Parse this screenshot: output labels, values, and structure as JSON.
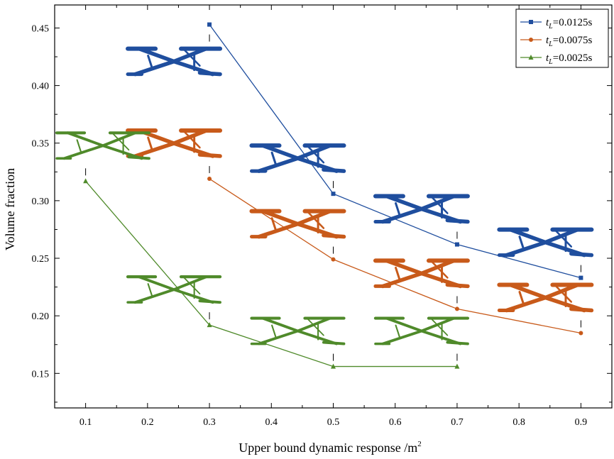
{
  "chart_data": {
    "type": "line",
    "xlabel": "Upper bound dynamic response /m",
    "xlabel_sup": "2",
    "ylabel": "Volume fraction",
    "xlim": [
      0.05,
      0.95
    ],
    "ylim": [
      0.12,
      0.47
    ],
    "xticks": [
      "0.1",
      "0.2",
      "0.3",
      "0.4",
      "0.5",
      "0.6",
      "0.7",
      "0.8",
      "0.9"
    ],
    "yticks": [
      "0.15",
      "0.20",
      "0.25",
      "0.30",
      "0.35",
      "0.40",
      "0.45"
    ],
    "grid": false,
    "legend_position": "top-right",
    "series": [
      {
        "name_prefix": "t",
        "name_sub": "L",
        "name_suffix": "=0.0125s",
        "color": "#1f4e9e",
        "marker": "square",
        "x": [
          0.3,
          0.5,
          0.7,
          0.9
        ],
        "y": [
          0.453,
          0.306,
          0.262,
          0.233
        ]
      },
      {
        "name_prefix": "t",
        "name_sub": "L",
        "name_suffix": "=0.0075s",
        "color": "#c85a1a",
        "marker": "circle",
        "x": [
          0.3,
          0.5,
          0.7,
          0.9
        ],
        "y": [
          0.319,
          0.249,
          0.206,
          0.185
        ]
      },
      {
        "name_prefix": "t",
        "name_sub": "L",
        "name_suffix": "=0.0025s",
        "color": "#4f8a2a",
        "marker": "triangle",
        "x": [
          0.1,
          0.3,
          0.5,
          0.7
        ],
        "y": [
          0.317,
          0.192,
          0.156,
          0.156
        ]
      }
    ],
    "structure_insets": [
      {
        "series": 0,
        "x": 0.3,
        "y": 0.453
      },
      {
        "series": 0,
        "x": 0.5,
        "y": 0.306
      },
      {
        "series": 0,
        "x": 0.7,
        "y": 0.262
      },
      {
        "series": 0,
        "x": 0.9,
        "y": 0.233
      },
      {
        "series": 1,
        "x": 0.3,
        "y": 0.319
      },
      {
        "series": 1,
        "x": 0.5,
        "y": 0.249
      },
      {
        "series": 1,
        "x": 0.7,
        "y": 0.206
      },
      {
        "series": 1,
        "x": 0.9,
        "y": 0.185
      },
      {
        "series": 2,
        "x": 0.1,
        "y": 0.317
      },
      {
        "series": 2,
        "x": 0.3,
        "y": 0.192
      },
      {
        "series": 2,
        "x": 0.5,
        "y": 0.156
      },
      {
        "series": 2,
        "x": 0.7,
        "y": 0.156
      }
    ]
  }
}
